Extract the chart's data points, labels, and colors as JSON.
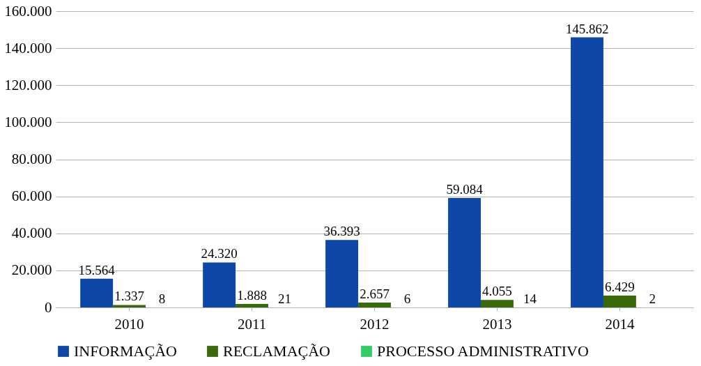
{
  "chart_data": {
    "type": "bar",
    "categories": [
      "2010",
      "2011",
      "2012",
      "2013",
      "2014"
    ],
    "series": [
      {
        "name": "INFORMAÇÃO",
        "color": "#0d47a8",
        "values": [
          15564,
          24320,
          36393,
          59084,
          145862
        ],
        "value_labels": [
          "15.564",
          "24.320",
          "36.393",
          "59.084",
          "145.862"
        ]
      },
      {
        "name": "RECLAMAÇÃO",
        "color": "#386a0a",
        "values": [
          1337,
          1888,
          2657,
          4055,
          6429
        ],
        "value_labels": [
          "1.337",
          "1.888",
          "2.657",
          "4.055",
          "6.429"
        ]
      },
      {
        "name": "PROCESSO ADMINISTRATIVO",
        "color": "#33cc66",
        "values": [
          8,
          21,
          6,
          14,
          2
        ],
        "value_labels": [
          "8",
          "21",
          "6",
          "14",
          "2"
        ]
      }
    ],
    "ylim": [
      0,
      160000
    ],
    "yticks": [
      0,
      {
        "value": 20000,
        "label": "20.000"
      },
      {
        "value": 40000,
        "label": "40.000"
      },
      {
        "value": 60000,
        "label": "60.000"
      },
      {
        "value": 80000,
        "label": "80.000"
      },
      {
        "value": 100000,
        "label": "100.000"
      },
      {
        "value": 120000,
        "label": "120.000"
      },
      {
        "value": 140000,
        "label": "140.000"
      },
      {
        "value": 160000,
        "label": "160.000"
      }
    ],
    "grid": "y",
    "legend": "bottom"
  }
}
